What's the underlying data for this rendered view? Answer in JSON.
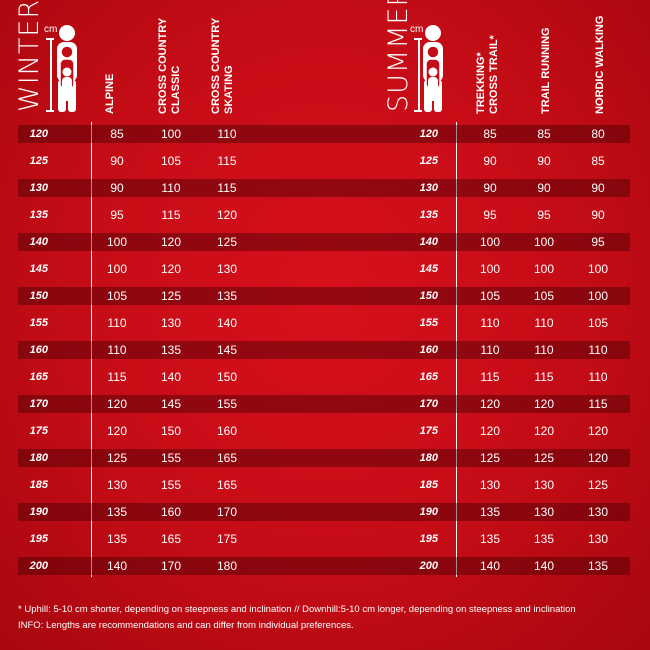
{
  "winter": {
    "season": "WINTER",
    "unit": "cm",
    "columns": [
      "ALPINE",
      "CROSS COUNTRY\nCLASSIC",
      "CROSS COUNTRY\nSKATING"
    ]
  },
  "summer": {
    "season": "SUMMER",
    "unit": "cm",
    "columns": [
      "TREKKING*\nCROSS TRAIL*",
      "TRAIL RUNNING",
      "NORDIC WALKING"
    ]
  },
  "heights": [
    "120",
    "125",
    "130",
    "135",
    "140",
    "145",
    "150",
    "155",
    "160",
    "165",
    "170",
    "175",
    "180",
    "185",
    "190",
    "195",
    "200"
  ],
  "winter_rows": [
    [
      "85",
      "100",
      "110"
    ],
    [
      "90",
      "105",
      "115"
    ],
    [
      "90",
      "110",
      "115"
    ],
    [
      "95",
      "115",
      "120"
    ],
    [
      "100",
      "120",
      "125"
    ],
    [
      "100",
      "120",
      "130"
    ],
    [
      "105",
      "125",
      "135"
    ],
    [
      "110",
      "130",
      "140"
    ],
    [
      "110",
      "135",
      "145"
    ],
    [
      "115",
      "140",
      "150"
    ],
    [
      "120",
      "145",
      "155"
    ],
    [
      "120",
      "150",
      "160"
    ],
    [
      "125",
      "155",
      "165"
    ],
    [
      "130",
      "155",
      "165"
    ],
    [
      "135",
      "160",
      "170"
    ],
    [
      "135",
      "165",
      "175"
    ],
    [
      "140",
      "170",
      "180"
    ]
  ],
  "summer_rows": [
    [
      "85",
      "85",
      "80"
    ],
    [
      "90",
      "90",
      "85"
    ],
    [
      "90",
      "90",
      "90"
    ],
    [
      "95",
      "95",
      "90"
    ],
    [
      "100",
      "100",
      "95"
    ],
    [
      "100",
      "100",
      "100"
    ],
    [
      "105",
      "105",
      "100"
    ],
    [
      "110",
      "110",
      "105"
    ],
    [
      "110",
      "110",
      "110"
    ],
    [
      "115",
      "115",
      "110"
    ],
    [
      "120",
      "120",
      "115"
    ],
    [
      "120",
      "120",
      "120"
    ],
    [
      "125",
      "125",
      "120"
    ],
    [
      "130",
      "130",
      "125"
    ],
    [
      "135",
      "130",
      "130"
    ],
    [
      "135",
      "135",
      "130"
    ],
    [
      "140",
      "140",
      "135"
    ]
  ],
  "footnotes": [
    "* Uphill: 5-10 cm shorter, depending on steepness and inclination // Downhill:5-10 cm longer, depending on steepness and inclination",
    "INFO: Lengths are recommendations and can differ from individual preferences."
  ],
  "colors": {
    "background": "#c40c16",
    "band": "#7a0308",
    "text": "#ffffff"
  }
}
